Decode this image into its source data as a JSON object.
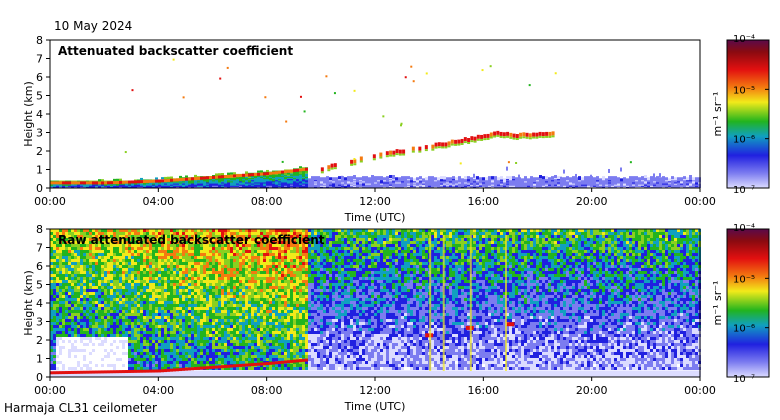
{
  "header": {
    "date": "10 May 2024"
  },
  "footer": {
    "station": "Harmaja CL31 ceilometer"
  },
  "chart_data": [
    {
      "type": "heatmap",
      "title": "Attenuated backscatter coefficient",
      "xlabel": "Time (UTC)",
      "ylabel": "Height (km)",
      "xlim": [
        0,
        24
      ],
      "ylim": [
        0,
        8
      ],
      "xticks": [
        "00:00",
        "04:00",
        "08:00",
        "12:00",
        "16:00",
        "20:00",
        "00:00"
      ],
      "yticks": [
        "0",
        "1",
        "2",
        "3",
        "4",
        "5",
        "6",
        "7",
        "8"
      ],
      "colorbar": {
        "unit_label": "m⁻¹ sr⁻¹",
        "ticks": [
          "10⁻⁴",
          "10⁻⁵",
          "10⁻⁶",
          "10⁻⁷"
        ],
        "log_range": [
          -7,
          -4
        ]
      },
      "features": {
        "boundary_layer_top": [
          [
            0,
            0.25
          ],
          [
            2,
            0.25
          ],
          [
            4,
            0.35
          ],
          [
            6,
            0.55
          ],
          [
            8,
            0.75
          ],
          [
            9.5,
            1.0
          ]
        ],
        "cloud_layer": [
          [
            10,
            1.0
          ],
          [
            12,
            1.7
          ],
          [
            14,
            2.2
          ],
          [
            15.5,
            2.6
          ],
          [
            16.5,
            2.9
          ],
          [
            17.2,
            2.8
          ],
          [
            18.5,
            2.9
          ]
        ],
        "near_surface_after_noon_km": 0.4
      }
    },
    {
      "type": "heatmap",
      "title": "Raw attenuated backscatter coefficient",
      "xlabel": "Time (UTC)",
      "ylabel": "Height (km)",
      "xlim": [
        0,
        24
      ],
      "ylim": [
        0,
        8
      ],
      "xticks": [
        "00:00",
        "04:00",
        "08:00",
        "12:00",
        "16:00",
        "20:00",
        "00:00"
      ],
      "yticks": [
        "0",
        "1",
        "2",
        "3",
        "4",
        "5",
        "6",
        "7",
        "8"
      ],
      "colorbar": {
        "unit_label": "m⁻¹ sr⁻¹",
        "ticks": [
          "10⁻⁴",
          "10⁻⁵",
          "10⁻⁶",
          "10⁻⁷"
        ],
        "log_range": [
          -7,
          -4
        ]
      },
      "features": {
        "noisy_until_hour": 9.5,
        "clear_patch": {
          "hours": [
            0.2,
            2.8
          ],
          "heights_km": [
            0.3,
            2.3
          ]
        },
        "cloud_layer": [
          [
            14,
            2.2
          ],
          [
            15.5,
            2.6
          ],
          [
            17,
            2.8
          ]
        ]
      }
    }
  ]
}
